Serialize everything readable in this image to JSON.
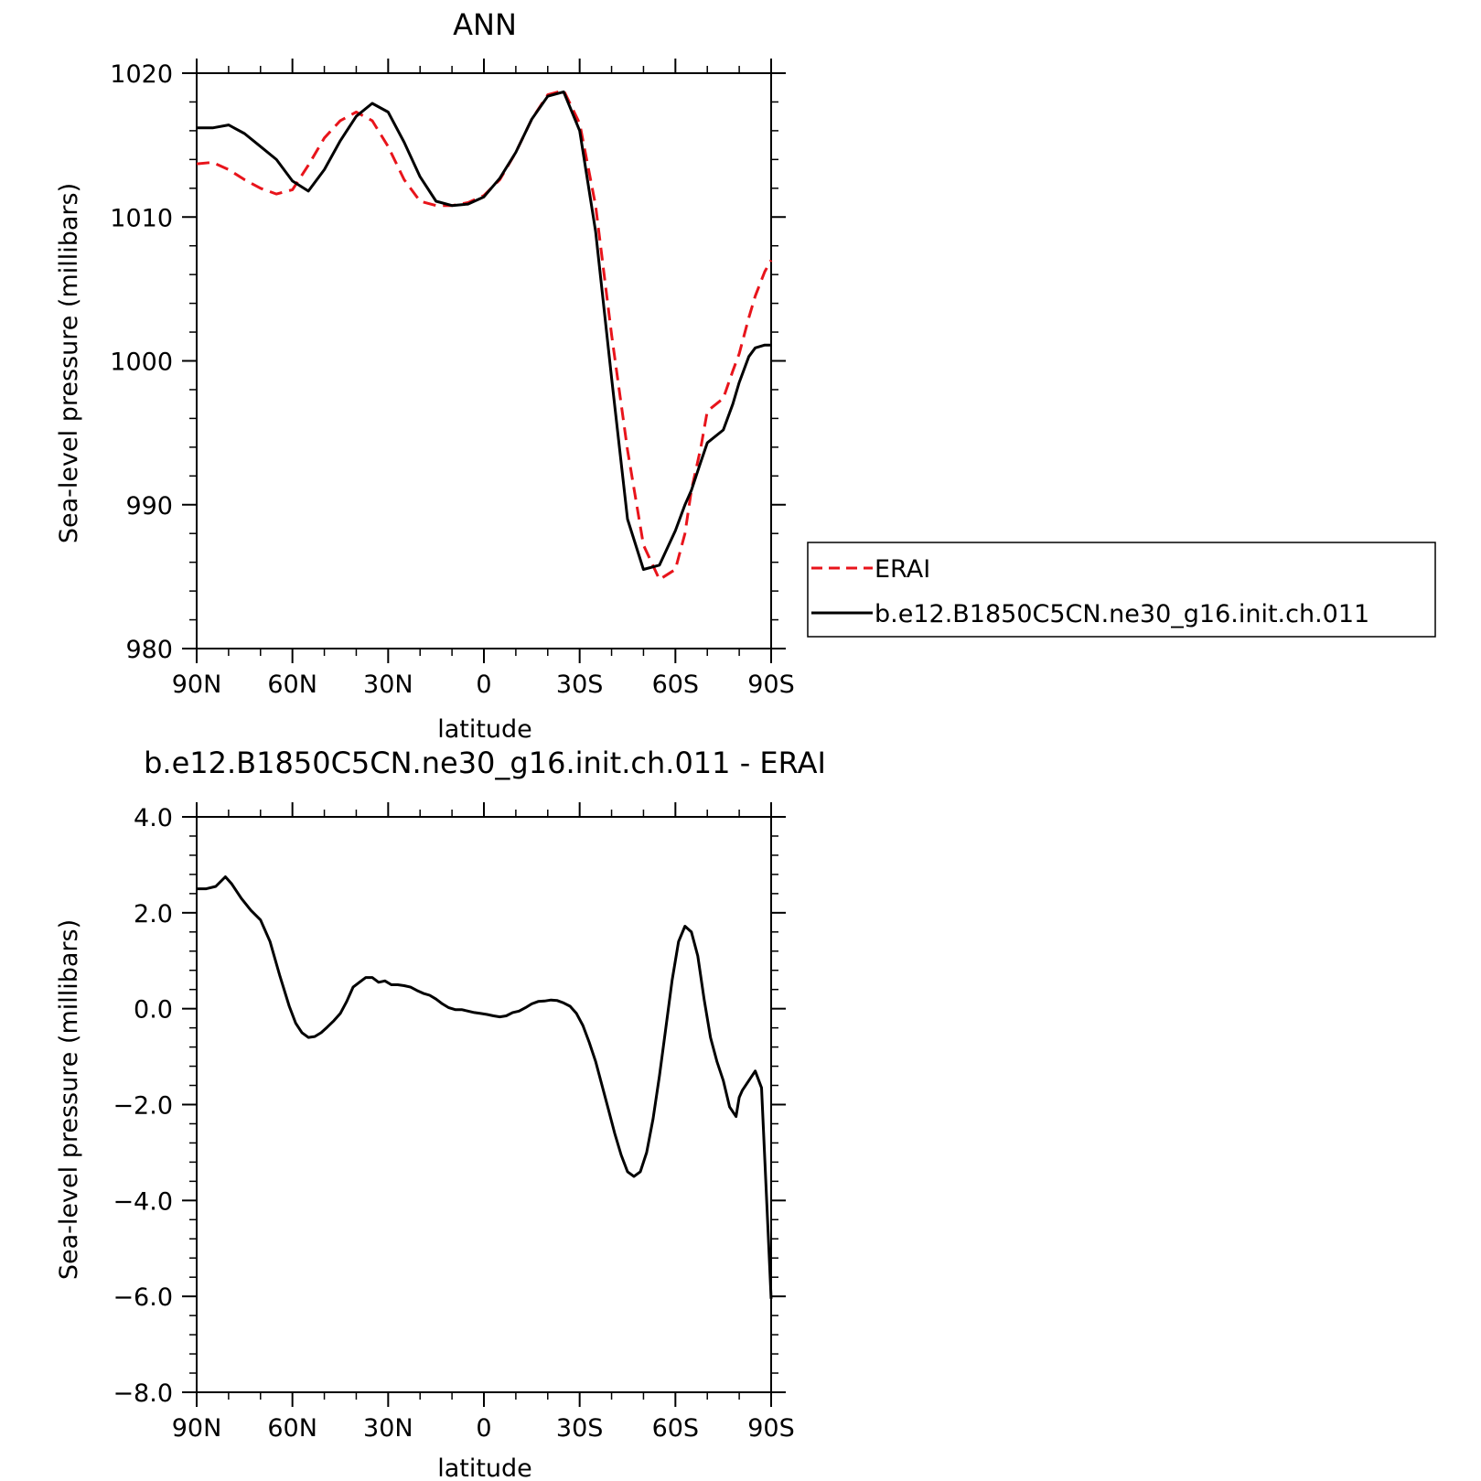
{
  "chart_data": [
    {
      "type": "line",
      "title": "ANN",
      "xlabel": "latitude",
      "ylabel": "Sea-level pressure (millibars)",
      "xlim": [
        90,
        -90
      ],
      "ylim": [
        980,
        1020
      ],
      "x_ticks": [
        90,
        60,
        30,
        0,
        -30,
        -60,
        -90
      ],
      "x_tick_labels": [
        "90N",
        "60N",
        "30N",
        "0",
        "30S",
        "60S",
        "90S"
      ],
      "y_ticks": [
        980,
        990,
        1000,
        1010,
        1020
      ],
      "y_tick_labels": [
        "980",
        "990",
        "1000",
        "1010",
        "1020"
      ],
      "legend_position": "right",
      "series": [
        {
          "name": "ERAI",
          "color": "#e8141b",
          "style": "dashed",
          "x": [
            90,
            85,
            80,
            75,
            70,
            65,
            60,
            55,
            50,
            45,
            40,
            35,
            30,
            25,
            20,
            15,
            10,
            5,
            0,
            -5,
            -10,
            -15,
            -20,
            -25,
            -30,
            -35,
            -40,
            -45,
            -50,
            -55,
            -60,
            -63,
            -65,
            -68,
            -70,
            -75,
            -78,
            -80,
            -83,
            -85,
            -88,
            -90
          ],
          "y": [
            1013.7,
            1013.8,
            1013.3,
            1012.6,
            1012.0,
            1011.6,
            1011.9,
            1013.6,
            1015.5,
            1016.7,
            1017.3,
            1016.7,
            1014.9,
            1012.6,
            1011.1,
            1010.8,
            1010.8,
            1011.0,
            1011.5,
            1012.6,
            1014.5,
            1016.8,
            1018.5,
            1018.8,
            1016.5,
            1010.8,
            1001.8,
            993.8,
            987.2,
            984.8,
            985.5,
            988.0,
            991.0,
            994.0,
            996.5,
            997.4,
            999.3,
            1000.5,
            1003.0,
            1004.5,
            1006.2,
            1007.0
          ]
        },
        {
          "name": "b.e12.B1850C5CN.ne30_g16.init.ch.011",
          "color": "#000000",
          "style": "solid",
          "x": [
            90,
            85,
            80,
            75,
            70,
            65,
            60,
            55,
            50,
            45,
            40,
            35,
            30,
            25,
            20,
            15,
            10,
            5,
            0,
            -5,
            -10,
            -15,
            -20,
            -25,
            -30,
            -35,
            -40,
            -45,
            -50,
            -55,
            -60,
            -63,
            -65,
            -68,
            -70,
            -75,
            -78,
            -80,
            -83,
            -85,
            -88,
            -90
          ],
          "y": [
            1016.2,
            1016.2,
            1016.4,
            1015.8,
            1014.9,
            1014.0,
            1012.5,
            1011.8,
            1013.3,
            1015.3,
            1017.0,
            1017.9,
            1017.3,
            1015.2,
            1012.8,
            1011.1,
            1010.8,
            1010.9,
            1011.4,
            1012.7,
            1014.5,
            1016.8,
            1018.4,
            1018.7,
            1016.0,
            1009.0,
            998.8,
            989.0,
            985.5,
            985.8,
            988.2,
            990.0,
            991.0,
            993.0,
            994.3,
            995.2,
            997.0,
            998.5,
            1000.3,
            1000.9,
            1001.1,
            1001.1
          ]
        }
      ]
    },
    {
      "type": "line",
      "title": "b.e12.B1850C5CN.ne30_g16.init.ch.011 - ERAI",
      "xlabel": "latitude",
      "ylabel": "Sea-level pressure (millibars)",
      "xlim": [
        90,
        -90
      ],
      "ylim": [
        -8.0,
        4.0
      ],
      "x_ticks": [
        90,
        60,
        30,
        0,
        -30,
        -60,
        -90
      ],
      "x_tick_labels": [
        "90N",
        "60N",
        "30N",
        "0",
        "30S",
        "60S",
        "90S"
      ],
      "y_ticks": [
        -8,
        -6,
        -4,
        -2,
        0,
        2,
        4
      ],
      "y_tick_labels": [
        "−8.0",
        "−6.0",
        "−4.0",
        "−2.0",
        "0.0",
        "2.0",
        "4.0"
      ],
      "series": [
        {
          "color": "#000000",
          "style": "solid",
          "x": [
            90,
            87,
            84,
            81,
            79,
            76,
            73,
            70,
            67,
            64,
            61,
            59,
            57,
            55,
            53,
            51,
            49,
            47,
            45,
            43,
            41,
            39,
            37,
            35,
            33,
            31,
            29,
            27,
            25,
            23,
            21,
            19,
            17,
            15,
            13,
            11,
            9,
            7,
            5,
            3,
            1,
            -1,
            -3,
            -5,
            -7,
            -9,
            -11,
            -13,
            -15,
            -17,
            -19,
            -21,
            -23,
            -25,
            -27,
            -29,
            -31,
            -33,
            -35,
            -37,
            -39,
            -41,
            -43,
            -45,
            -47,
            -49,
            -51,
            -53,
            -55,
            -57,
            -59,
            -61,
            -63,
            -65,
            -67,
            -69,
            -71,
            -73,
            -75,
            -77,
            -79,
            -80,
            -81,
            -83,
            -85,
            -87,
            -90
          ],
          "y": [
            2.5,
            2.5,
            2.55,
            2.75,
            2.6,
            2.3,
            2.05,
            1.85,
            1.4,
            0.7,
            0.05,
            -0.3,
            -0.5,
            -0.6,
            -0.58,
            -0.5,
            -0.38,
            -0.25,
            -0.1,
            0.15,
            0.45,
            0.55,
            0.65,
            0.65,
            0.55,
            0.58,
            0.5,
            0.5,
            0.48,
            0.45,
            0.38,
            0.32,
            0.28,
            0.2,
            0.1,
            0.02,
            -0.02,
            -0.02,
            -0.05,
            -0.08,
            -0.1,
            -0.12,
            -0.15,
            -0.17,
            -0.15,
            -0.08,
            -0.05,
            0.02,
            0.1,
            0.15,
            0.16,
            0.18,
            0.17,
            0.12,
            0.05,
            -0.1,
            -0.35,
            -0.7,
            -1.1,
            -1.6,
            -2.1,
            -2.6,
            -3.05,
            -3.4,
            -3.5,
            -3.4,
            -3.0,
            -2.3,
            -1.4,
            -0.4,
            0.6,
            1.4,
            1.72,
            1.6,
            1.1,
            0.2,
            -0.6,
            -1.1,
            -1.5,
            -2.05,
            -2.25,
            -1.85,
            -1.7,
            -1.5,
            -1.3,
            -1.65,
            -6.05
          ]
        }
      ]
    }
  ]
}
